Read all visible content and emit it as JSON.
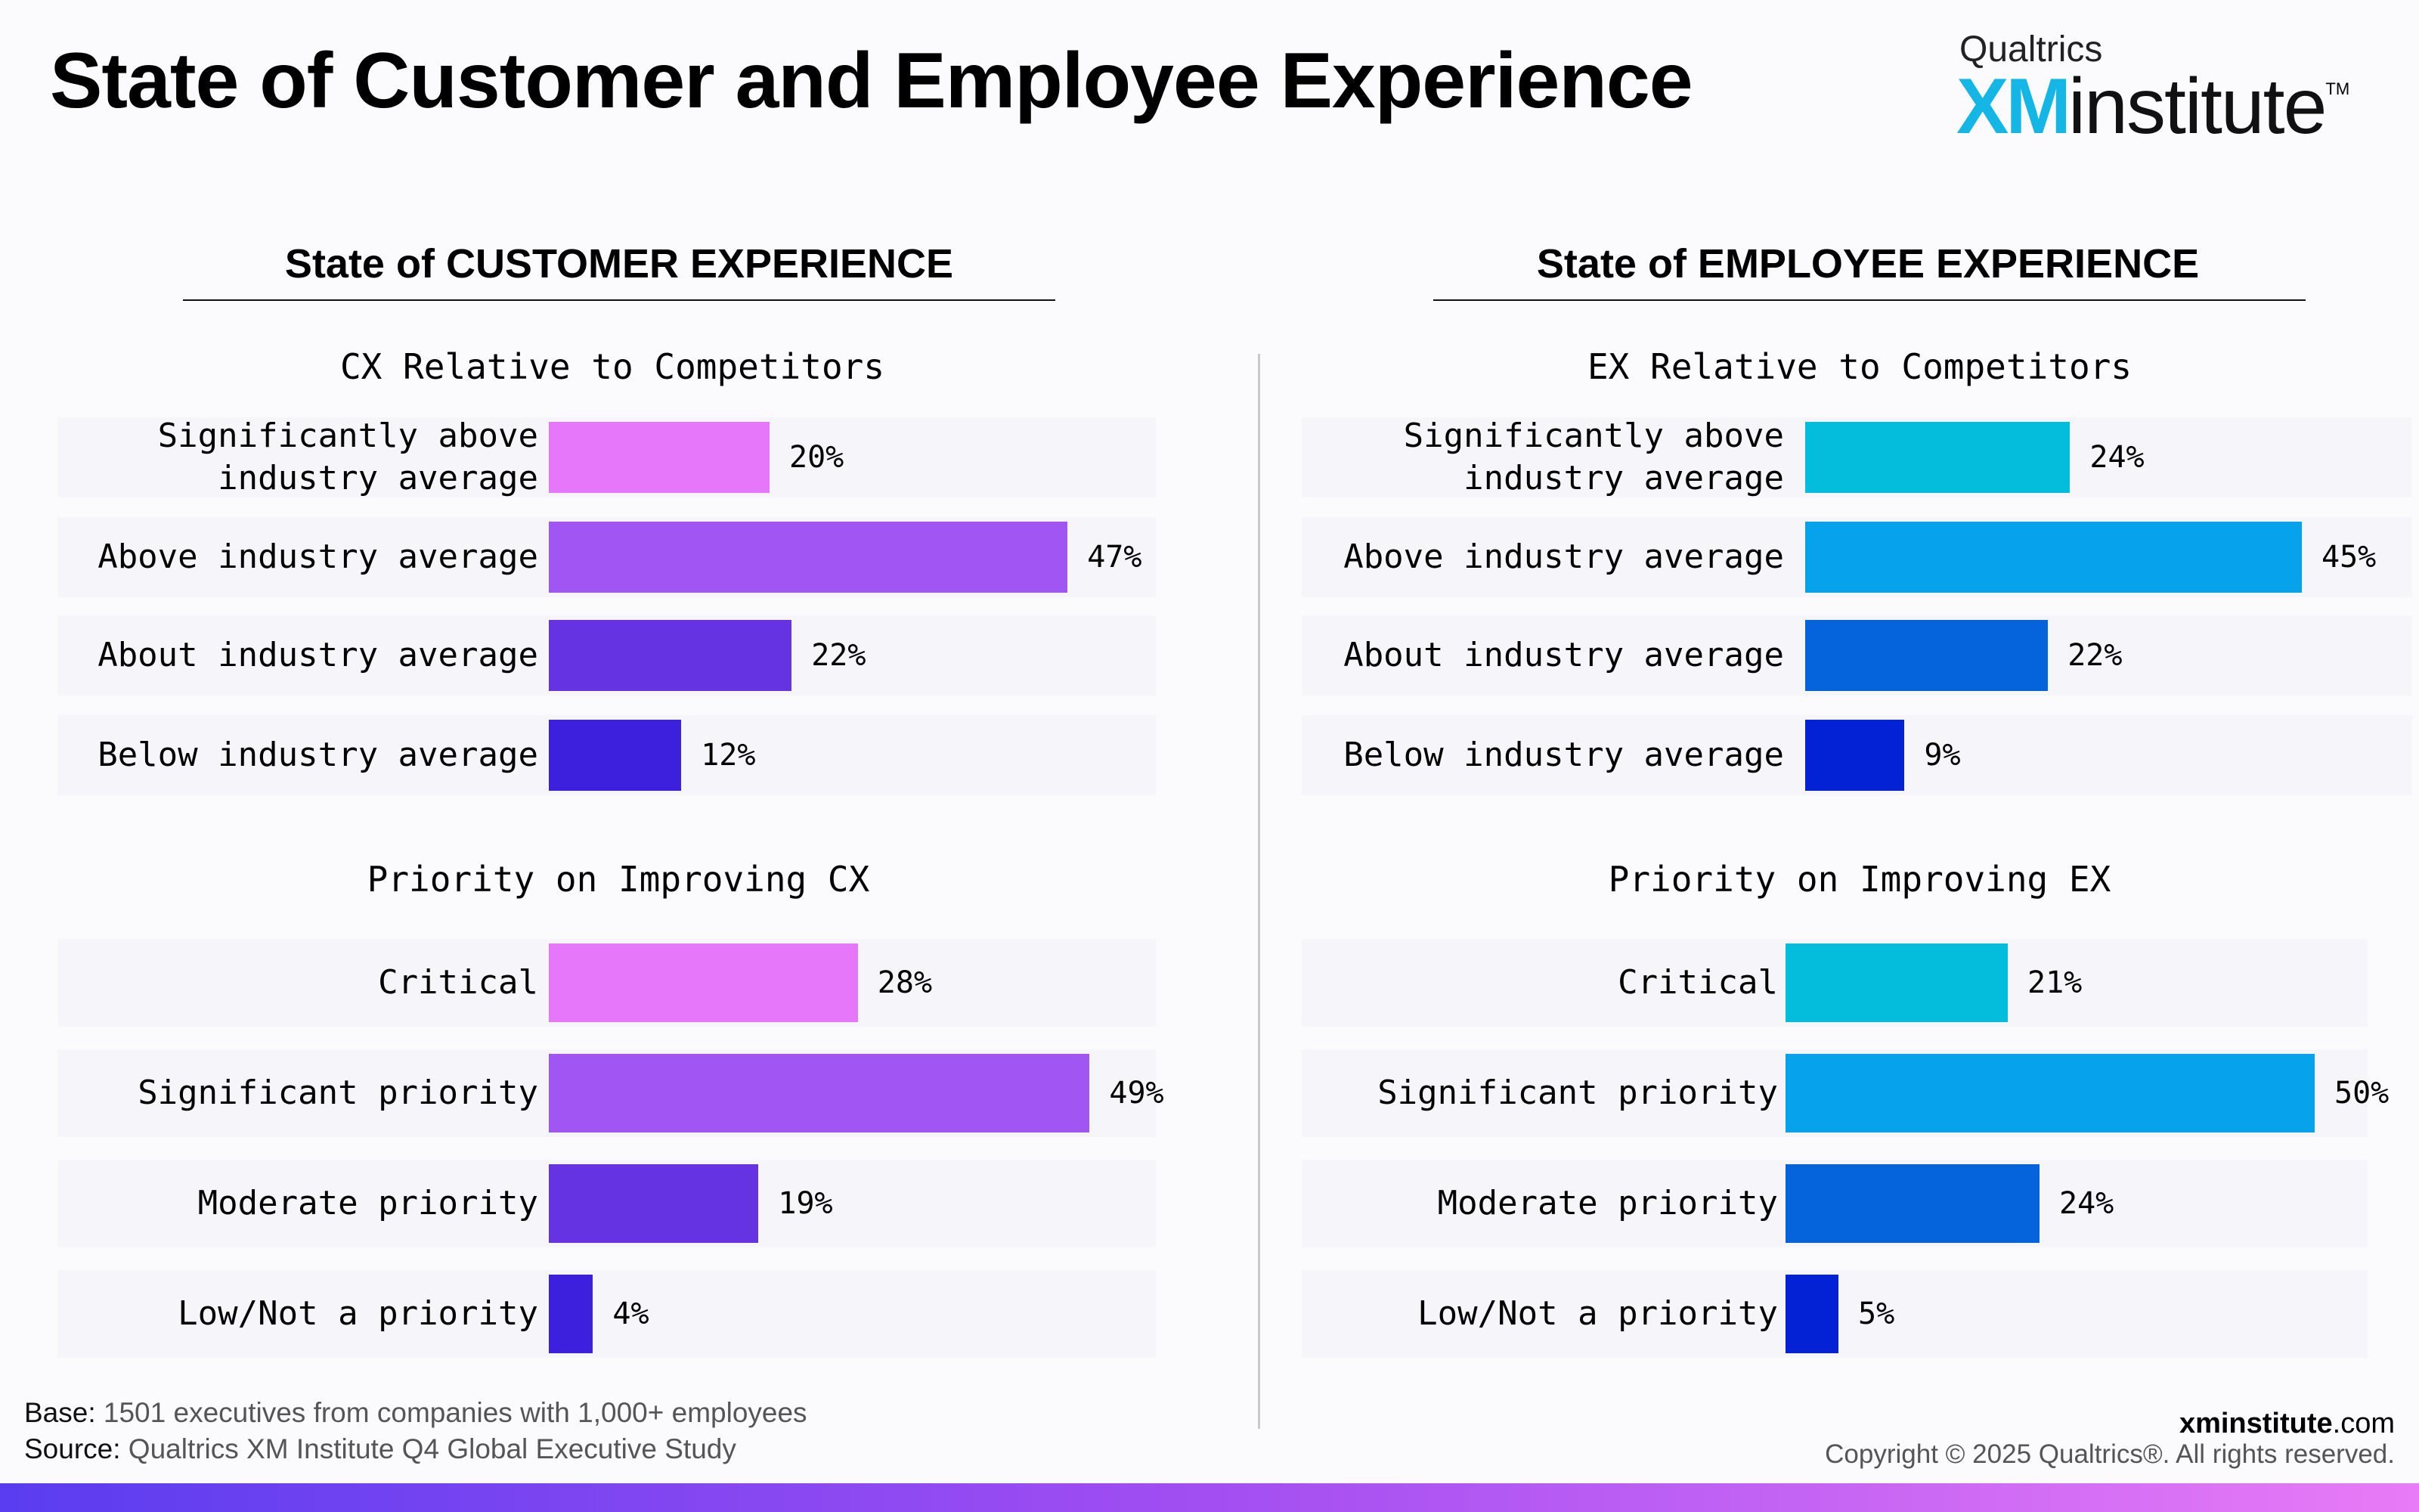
{
  "title": "State of Customer and Employee Experience",
  "logo": {
    "brand": "Qualtrics",
    "xm": "XM",
    "institute": "institute",
    "tm": "TM"
  },
  "panels": [
    {
      "heading": "State of CUSTOMER EXPERIENCE"
    },
    {
      "heading": "State of EMPLOYEE EXPERIENCE"
    }
  ],
  "chart_data": [
    {
      "type": "bar",
      "orientation": "horizontal",
      "title": "CX Relative to Competitors",
      "categories": [
        "Significantly above\nindustry average",
        "Above industry average",
        "About industry average",
        "Below industry average"
      ],
      "values": [
        20,
        47,
        22,
        12
      ],
      "value_labels": [
        "20%",
        "47%",
        "22%",
        "12%"
      ],
      "colors": [
        "#e777fa",
        "#a155f2",
        "#6633e3",
        "#3d1fde"
      ],
      "xlim": [
        0,
        100
      ]
    },
    {
      "type": "bar",
      "orientation": "horizontal",
      "title": "Priority on Improving CX",
      "categories": [
        "Critical",
        "Significant priority",
        "Moderate priority",
        "Low/Not a priority"
      ],
      "values": [
        28,
        49,
        19,
        4
      ],
      "value_labels": [
        "28%",
        "49%",
        "19%",
        "4%"
      ],
      "colors": [
        "#e777fa",
        "#a155f2",
        "#6633e3",
        "#3d1fde"
      ],
      "xlim": [
        0,
        100
      ]
    },
    {
      "type": "bar",
      "orientation": "horizontal",
      "title": "EX Relative to Competitors",
      "categories": [
        "Significantly above\nindustry average",
        "Above industry average",
        "About industry average",
        "Below industry average"
      ],
      "values": [
        24,
        45,
        22,
        9
      ],
      "value_labels": [
        "24%",
        "45%",
        "22%",
        "9%"
      ],
      "colors": [
        "#04bcdc",
        "#06a3ec",
        "#0563dc",
        "#0322d6"
      ],
      "xlim": [
        0,
        100
      ]
    },
    {
      "type": "bar",
      "orientation": "horizontal",
      "title": "Priority on Improving EX",
      "categories": [
        "Critical",
        "Significant priority",
        "Moderate priority",
        "Low/Not a priority"
      ],
      "values": [
        21,
        50,
        24,
        5
      ],
      "value_labels": [
        "21%",
        "50%",
        "24%",
        "5%"
      ],
      "colors": [
        "#04bcdc",
        "#06a3ec",
        "#0563dc",
        "#0322d6"
      ],
      "xlim": [
        0,
        100
      ]
    }
  ],
  "footer": {
    "base_label": "Base:",
    "base_text": " 1501 executives from companies with 1,000+ employees",
    "source_label": "Source:",
    "source_text": " Qualtrics XM Institute Q4 Global Executive Study",
    "site_strong": "xminstitute",
    "site_rest": ".com",
    "copyright": "Copyright © 2025 Qualtrics®. All rights reserved."
  }
}
